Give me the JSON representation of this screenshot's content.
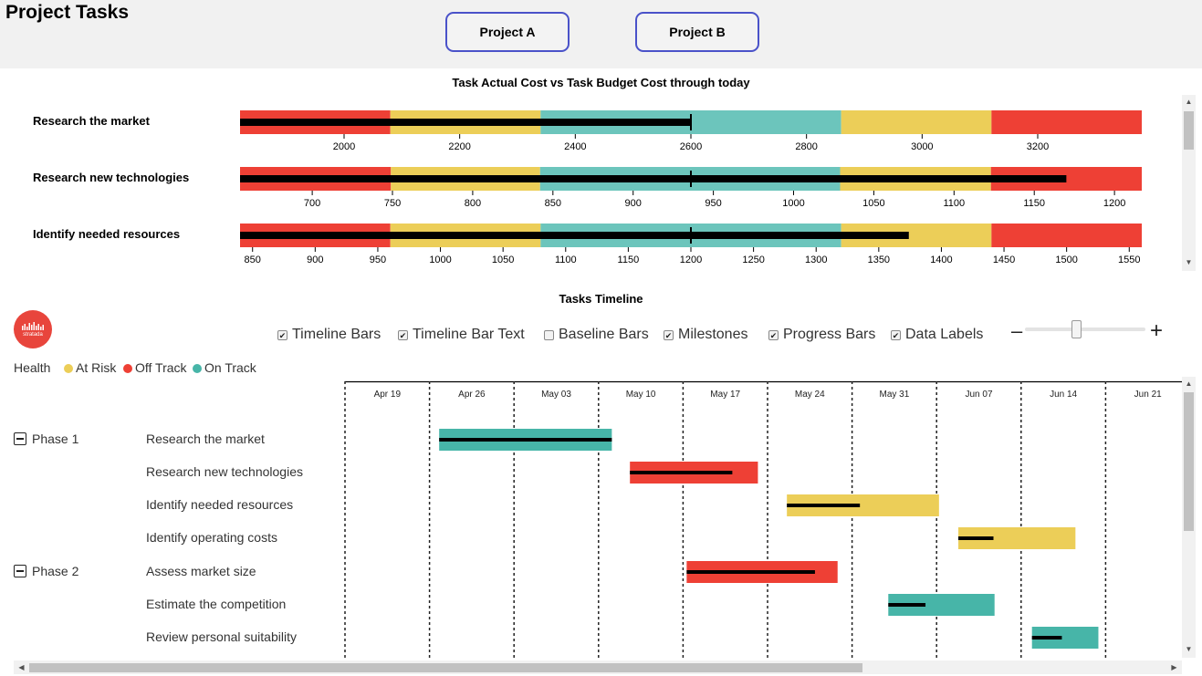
{
  "app_title": "Project Tasks",
  "project_buttons": [
    "Project A",
    "Project B"
  ],
  "cost_chart": {
    "title": "Task Actual Cost vs Task Budget Cost through today",
    "band_colors": [
      "#ee4035",
      "#ecce58",
      "#6cc5bc",
      "#ecce58",
      "#ee4035"
    ],
    "measure_color": "#000000",
    "rows": [
      {
        "label": "Research the market",
        "min": 1820,
        "max": 3380,
        "bands": [
          2080,
          2340,
          2860,
          3120
        ],
        "actual": 2600,
        "target": 2600,
        "ticks": [
          "2000",
          "2200",
          "2400",
          "2600",
          "2800",
          "3000",
          "3200"
        ],
        "tick_values": [
          2000,
          2200,
          2400,
          2600,
          2800,
          3000,
          3200
        ]
      },
      {
        "label": "Research new technologies",
        "min": 655,
        "max": 1217,
        "bands": [
          749,
          842,
          1029,
          1123
        ],
        "actual": 1170,
        "target": 936,
        "ticks": [
          "700",
          "750",
          "800",
          "850",
          "900",
          "950",
          "1000",
          "1050",
          "1100",
          "1150",
          "1200"
        ],
        "tick_values": [
          700,
          750,
          800,
          850,
          900,
          950,
          1000,
          1050,
          1100,
          1150,
          1200
        ]
      },
      {
        "label": "Identify needed resources",
        "min": 840,
        "max": 1560,
        "bands": [
          960,
          1080,
          1320,
          1440
        ],
        "actual": 1374,
        "target": 1200,
        "ticks": [
          "850",
          "900",
          "950",
          "1000",
          "1050",
          "1100",
          "1150",
          "1200",
          "1250",
          "1300",
          "1350",
          "1400",
          "1450",
          "1500",
          "1550"
        ],
        "tick_values": [
          850,
          900,
          950,
          1000,
          1050,
          1100,
          1150,
          1200,
          1250,
          1300,
          1350,
          1400,
          1450,
          1500,
          1550
        ]
      }
    ]
  },
  "timeline": {
    "title": "Tasks Timeline",
    "logo_text": "stratada",
    "options": [
      {
        "label": "Timeline Bars",
        "checked": true
      },
      {
        "label": "Timeline Bar Text",
        "checked": true
      },
      {
        "label": "Baseline Bars",
        "checked": false
      },
      {
        "label": "Milestones",
        "checked": true
      },
      {
        "label": "Progress Bars",
        "checked": true
      },
      {
        "label": "Data Labels",
        "checked": true
      }
    ],
    "zoom_minus": "–",
    "zoom_plus": "+",
    "zoom_level": 0.42,
    "legend": {
      "title": "Health",
      "items": [
        {
          "label": "At Risk",
          "color": "#ecce58"
        },
        {
          "label": "Off Track",
          "color": "#ee4035"
        },
        {
          "label": "On Track",
          "color": "#47b5a8"
        }
      ]
    },
    "dates": [
      "Apr 19",
      "Apr 26",
      "May 03",
      "May 10",
      "May 17",
      "May 24",
      "May 31",
      "Jun 07",
      "Jun 14",
      "Jun 21"
    ],
    "phases": [
      {
        "name": "Phase 1",
        "tasks": [
          {
            "name": "Research the market",
            "health": "On Track",
            "start_day": 7.8,
            "end_day": 22.1,
            "progress": 1.0
          },
          {
            "name": "Research new technologies",
            "health": "Off Track",
            "start_day": 23.6,
            "end_day": 34.2,
            "progress": 0.8
          },
          {
            "name": "Identify needed resources",
            "health": "At Risk",
            "start_day": 36.6,
            "end_day": 49.2,
            "progress": 0.48
          },
          {
            "name": "Identify operating costs",
            "health": "At Risk",
            "start_day": 50.8,
            "end_day": 60.5,
            "progress": 0.3
          }
        ]
      },
      {
        "name": "Phase 2",
        "tasks": [
          {
            "name": "Assess market size",
            "health": "Off Track",
            "start_day": 28.3,
            "end_day": 40.8,
            "progress": 0.85
          },
          {
            "name": "Estimate the competition",
            "health": "On Track",
            "start_day": 45.0,
            "end_day": 53.8,
            "progress": 0.35
          },
          {
            "name": "Review personal suitability",
            "health": "On Track",
            "start_day": 56.9,
            "end_day": 62.4,
            "progress": 0.45
          }
        ]
      }
    ]
  }
}
